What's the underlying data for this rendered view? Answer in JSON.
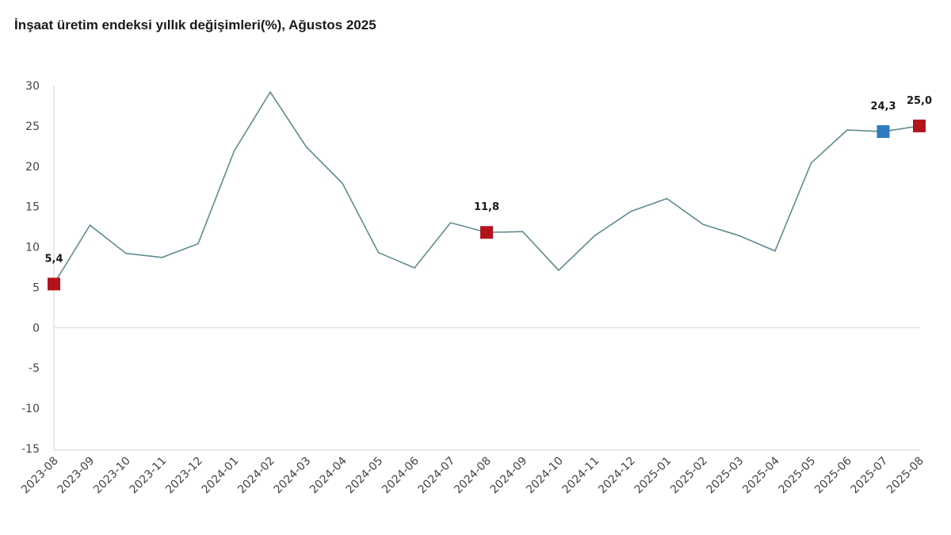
{
  "chart_data": {
    "type": "line",
    "title": "İnşaat üretim endeksi yıllık değişimleri(%), Ağustos 2025",
    "xlabel": "",
    "ylabel": "",
    "ylim": [
      -15,
      30
    ],
    "yticks": [
      30,
      25,
      20,
      15,
      10,
      5,
      0,
      -5,
      -10,
      -15
    ],
    "grid": "zero line only",
    "categories": [
      "2023-08",
      "2023-09",
      "2023-10",
      "2023-11",
      "2023-12",
      "2024-01",
      "2024-02",
      "2024-03",
      "2024-04",
      "2024-05",
      "2024-06",
      "2024-07",
      "2024-08",
      "2024-09",
      "2024-10",
      "2024-11",
      "2024-12",
      "2025-01",
      "2025-02",
      "2025-03",
      "2025-04",
      "2025-05",
      "2025-06",
      "2025-07",
      "2025-08"
    ],
    "series": [
      {
        "values": [
          5.4,
          12.7,
          9.2,
          8.7,
          10.4,
          21.9,
          29.2,
          22.4,
          17.9,
          9.3,
          7.4,
          13.0,
          11.8,
          11.9,
          7.1,
          11.4,
          14.4,
          16.0,
          12.8,
          11.4,
          9.5,
          20.4,
          24.5,
          24.3,
          25.0
        ],
        "color": "#5f8b90"
      }
    ],
    "highlighted_points": [
      {
        "category": "2023-08",
        "label": "5,4",
        "color": "#b3141c"
      },
      {
        "category": "2024-08",
        "label": "11,8",
        "color": "#b3141c"
      },
      {
        "category": "2025-07",
        "label": "24,3",
        "color": "#2e7bbf"
      },
      {
        "category": "2025-08",
        "label": "25,0",
        "color": "#b3141c"
      }
    ]
  }
}
